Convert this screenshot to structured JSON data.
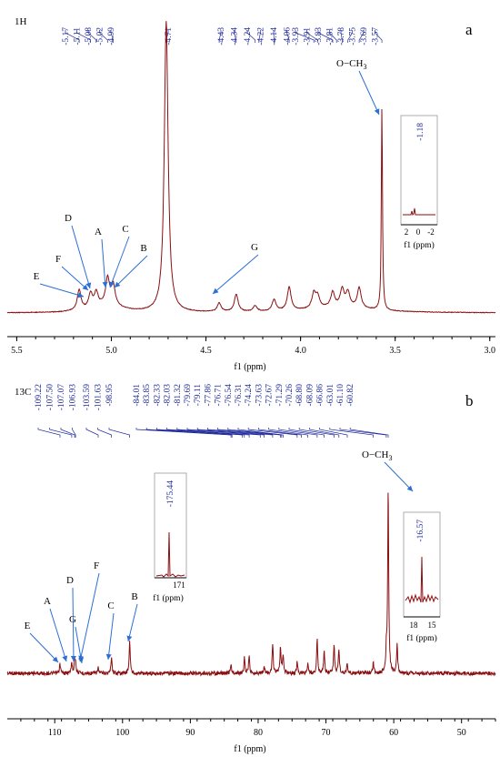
{
  "chart_data": [
    {
      "type": "line",
      "panel_label": "a",
      "nucleus": "1H",
      "xlabel": "f1 (ppm)",
      "xlim": [
        5.55,
        2.97
      ],
      "x_ticks": [
        "5.5",
        "5.0",
        "4.5",
        "4.0",
        "3.5",
        "3.0"
      ],
      "peak_labels": [
        "5.17",
        "5.11",
        "5.08",
        "5.02",
        "4.99",
        "4.71",
        "4.43",
        "4.34",
        "4.24",
        "4.22",
        "4.14",
        "4.06",
        "3.93",
        "3.91",
        "3.83",
        "3.81",
        "3.78",
        "3.75",
        "3.69",
        "3.57"
      ],
      "annotations": [
        {
          "text": "D",
          "ppm": 5.11
        },
        {
          "text": "A",
          "ppm": 5.03
        },
        {
          "text": "C",
          "ppm": 5.01
        },
        {
          "text": "B",
          "ppm": 4.99
        },
        {
          "text": "F",
          "ppm": 5.12
        },
        {
          "text": "E",
          "ppm": 5.17
        },
        {
          "text": "G",
          "ppm": 4.43
        },
        {
          "text": "O−CH",
          "sub": "3",
          "ppm": 3.57
        }
      ],
      "peaks": [
        [
          5.17,
          0.07
        ],
        [
          5.11,
          0.05
        ],
        [
          5.08,
          0.05
        ],
        [
          5.02,
          0.09
        ],
        [
          4.99,
          0.07
        ],
        [
          4.71,
          1.0
        ],
        [
          4.43,
          0.03
        ],
        [
          4.34,
          0.06
        ],
        [
          4.24,
          0.02
        ],
        [
          4.14,
          0.04
        ],
        [
          4.06,
          0.08
        ],
        [
          3.93,
          0.05
        ],
        [
          3.91,
          0.04
        ],
        [
          3.83,
          0.05
        ],
        [
          3.78,
          0.06
        ],
        [
          3.75,
          0.05
        ],
        [
          3.69,
          0.07
        ],
        [
          3.57,
          0.7
        ]
      ],
      "inset": {
        "peak_label": "-1.18",
        "x_ticks": [
          "2",
          "0",
          "-2"
        ],
        "xlabel": "f1 (ppm)"
      }
    },
    {
      "type": "line",
      "panel_label": "b",
      "nucleus": "13C",
      "xlabel": "f1 (ppm)",
      "xlim": [
        117,
        45
      ],
      "x_ticks": [
        "110",
        "100",
        "90",
        "80",
        "70",
        "60",
        "50"
      ],
      "peak_labels_left": [
        "109.22",
        "107.50",
        "107.07",
        "106.93",
        "103.59",
        "101.63",
        "98.95"
      ],
      "peak_labels_right": [
        "84.01",
        "83.85",
        "82.33",
        "82.03",
        "81.32",
        "79.69",
        "79.11",
        "77.86",
        "76.71",
        "76.54",
        "76.31",
        "74.24",
        "73.63",
        "72.67",
        "71.29",
        "70.26",
        "68.80",
        "68.09",
        "66.86",
        "63.01",
        "61.10",
        "60.82"
      ],
      "annotations": [
        {
          "text": "E",
          "ppm": 109.22
        },
        {
          "text": "A",
          "ppm": 107.5
        },
        {
          "text": "D",
          "ppm": 107.07
        },
        {
          "text": "F",
          "ppm": 106.93
        },
        {
          "text": "G",
          "ppm": 103.59
        },
        {
          "text": "C",
          "ppm": 101.63
        },
        {
          "text": "B",
          "ppm": 98.95
        },
        {
          "text": "O−CH",
          "sub": "3",
          "ppm": 60.82
        }
      ],
      "peaks": [
        [
          109.22,
          0.05
        ],
        [
          107.5,
          0.06
        ],
        [
          107.07,
          0.07
        ],
        [
          106.93,
          0.05
        ],
        [
          103.59,
          0.03
        ],
        [
          101.63,
          0.09
        ],
        [
          98.95,
          0.18
        ],
        [
          84.01,
          0.05
        ],
        [
          82.03,
          0.08
        ],
        [
          81.32,
          0.1
        ],
        [
          79.11,
          0.04
        ],
        [
          77.86,
          0.16
        ],
        [
          76.71,
          0.14
        ],
        [
          76.31,
          0.1
        ],
        [
          74.24,
          0.06
        ],
        [
          72.67,
          0.06
        ],
        [
          71.29,
          0.18
        ],
        [
          70.26,
          0.12
        ],
        [
          68.8,
          0.15
        ],
        [
          68.09,
          0.13
        ],
        [
          66.86,
          0.06
        ],
        [
          63.01,
          0.06
        ],
        [
          61.1,
          0.1
        ],
        [
          60.82,
          1.0
        ],
        [
          59.5,
          0.15
        ]
      ],
      "insets": [
        {
          "peak_label": "-175.44",
          "x_ticks": [
            "171"
          ],
          "xlabel": "f1 (ppm)"
        },
        {
          "peak_label": "-16.57",
          "x_ticks": [
            "18",
            "15"
          ],
          "xlabel": "f1 (ppm)"
        }
      ]
    }
  ]
}
